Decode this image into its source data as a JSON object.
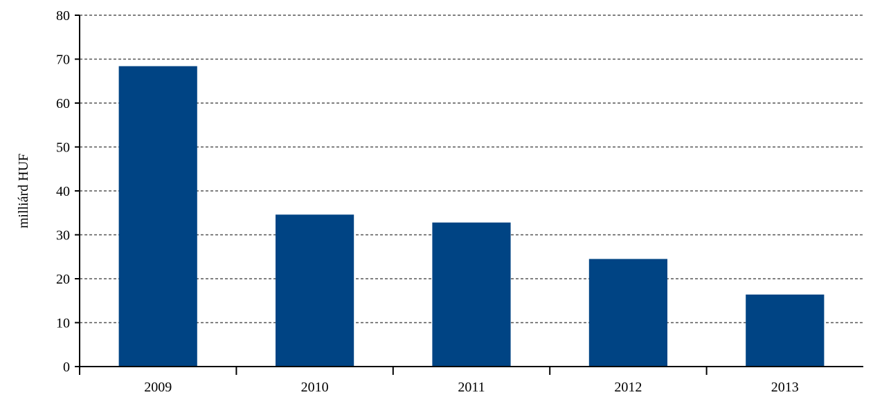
{
  "chart_data": {
    "type": "bar",
    "title": "",
    "xlabel": "",
    "ylabel": "milliárd HUF",
    "categories": [
      "2009",
      "2010",
      "2011",
      "2012",
      "2013"
    ],
    "values": [
      68.4,
      34.6,
      32.8,
      24.5,
      16.4
    ],
    "ylim": [
      0,
      80
    ],
    "yticks": [
      0,
      10,
      20,
      30,
      40,
      50,
      60,
      70,
      80
    ],
    "grid": true,
    "legend": "none",
    "bar_color": "#004484"
  }
}
